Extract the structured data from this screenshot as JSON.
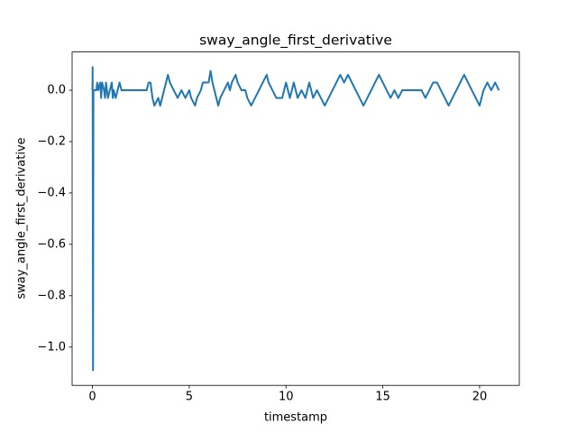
{
  "chart_data": {
    "type": "line",
    "title": "sway_angle_first_derivative",
    "x_label": "timestamp",
    "y_label": "sway_angle_first_derivative",
    "x": [
      0,
      0.01,
      0.03,
      0.05,
      0.2,
      0.25,
      0.3,
      0.4,
      0.45,
      0.5,
      0.6,
      0.65,
      0.7,
      0.8,
      0.9,
      1.0,
      1.05,
      1.1,
      1.2,
      1.3,
      1.4,
      1.5,
      2.8,
      2.9,
      3.0,
      3.1,
      3.2,
      3.4,
      3.5,
      3.6,
      3.7,
      3.8,
      3.9,
      4.0,
      4.2,
      4.4,
      4.6,
      4.8,
      5.0,
      5.1,
      5.3,
      5.4,
      5.6,
      5.7,
      6.0,
      6.1,
      6.2,
      6.4,
      6.5,
      6.6,
      6.8,
      7.0,
      7.1,
      7.2,
      7.4,
      7.5,
      7.7,
      7.9,
      8.0,
      8.2,
      8.4,
      8.6,
      8.8,
      9.0,
      9.1,
      9.3,
      9.5,
      9.8,
      10.0,
      10.2,
      10.4,
      10.6,
      10.8,
      11.0,
      11.2,
      11.4,
      11.6,
      11.8,
      12.0,
      12.2,
      12.4,
      12.6,
      12.8,
      13.0,
      13.2,
      13.4,
      13.6,
      13.8,
      14.0,
      14.2,
      14.4,
      14.6,
      14.8,
      15.0,
      15.2,
      15.4,
      15.6,
      15.8,
      16.0,
      17.0,
      17.2,
      17.4,
      17.6,
      17.8,
      18.0,
      18.2,
      18.4,
      18.6,
      18.8,
      19.0,
      19.2,
      19.4,
      19.6,
      19.8,
      20.0,
      20.2,
      20.4,
      20.6,
      20.8,
      21.0
    ],
    "series": [
      {
        "color": "#1f77b4",
        "values": [
          0,
          0.09,
          -1.09,
          0,
          0,
          0.03,
          0,
          0.03,
          -0.03,
          0.03,
          0,
          -0.03,
          0.03,
          -0.03,
          0,
          0.03,
          -0.03,
          0,
          -0.03,
          0,
          0.03,
          0,
          0,
          0.03,
          0.03,
          -0.03,
          -0.06,
          -0.03,
          -0.06,
          -0.03,
          0,
          0.03,
          0.06,
          0.03,
          0,
          -0.03,
          0,
          -0.03,
          0,
          -0.03,
          -0.06,
          -0.03,
          0,
          0.03,
          0.03,
          0.075,
          0.03,
          -0.03,
          -0.06,
          -0.03,
          0,
          0.03,
          0,
          0.03,
          0.06,
          0.03,
          0,
          0,
          -0.03,
          -0.06,
          -0.03,
          0,
          0.03,
          0.06,
          0.03,
          0,
          -0.03,
          -0.03,
          0.03,
          -0.03,
          0.03,
          -0.03,
          0,
          -0.03,
          0.03,
          -0.03,
          0,
          -0.03,
          -0.06,
          -0.03,
          0,
          0.03,
          0.06,
          0.03,
          0.06,
          0.03,
          0,
          -0.03,
          -0.06,
          -0.03,
          0,
          0.03,
          0.06,
          0.03,
          0,
          -0.03,
          0,
          -0.03,
          0,
          0,
          -0.03,
          0,
          0.03,
          0.03,
          0,
          -0.03,
          -0.06,
          -0.03,
          0,
          0.03,
          0.06,
          0.03,
          0,
          -0.03,
          -0.06,
          0,
          0.03,
          0,
          0.03,
          0
        ]
      }
    ],
    "xlim": [
      -1.05,
      22.05
    ],
    "ylim": [
      -1.149,
      0.149
    ],
    "xticks": [
      0,
      5,
      10,
      15,
      20
    ],
    "yticks": [
      {
        "value": -1.0,
        "label": "−1.0"
      },
      {
        "value": -0.8,
        "label": "−0.8"
      },
      {
        "value": -0.6,
        "label": "−0.6"
      },
      {
        "value": -0.4,
        "label": "−0.4"
      },
      {
        "value": -0.2,
        "label": "−0.2"
      },
      {
        "value": 0.0,
        "label": "0.0"
      }
    ]
  }
}
